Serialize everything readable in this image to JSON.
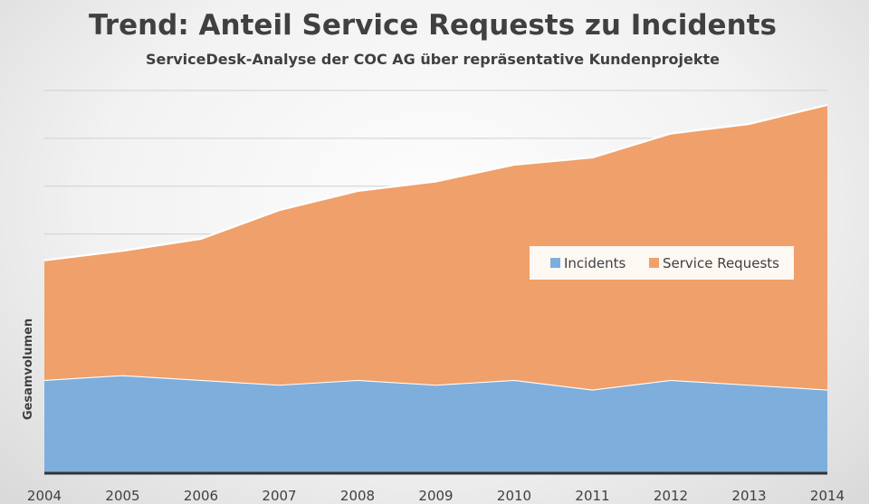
{
  "chart_data": {
    "type": "area",
    "title": "Trend: Anteil Service Requests zu Incidents",
    "subtitle": "ServiceDesk-Analyse der COC AG über repräsentative Kundenprojekte",
    "ylabel": "Gesamvolumen",
    "xlabel": "",
    "stacked": true,
    "x": [
      "2004",
      "2005",
      "2006",
      "2007",
      "2008",
      "2009",
      "2010",
      "2011",
      "2012",
      "2013",
      "2014"
    ],
    "ylim": [
      0,
      8
    ],
    "grid": true,
    "legend_position": "center-right",
    "series": [
      {
        "name": "Incidents",
        "color": "#7eaedc",
        "values": [
          1.95,
          2.05,
          1.95,
          1.85,
          1.95,
          1.85,
          1.95,
          1.75,
          1.95,
          1.85,
          1.75
        ]
      },
      {
        "name": "Service Requests",
        "color": "#f0a06a",
        "values": [
          2.5,
          2.6,
          2.95,
          3.65,
          3.95,
          4.25,
          4.5,
          4.85,
          5.15,
          5.45,
          5.95
        ]
      }
    ]
  }
}
